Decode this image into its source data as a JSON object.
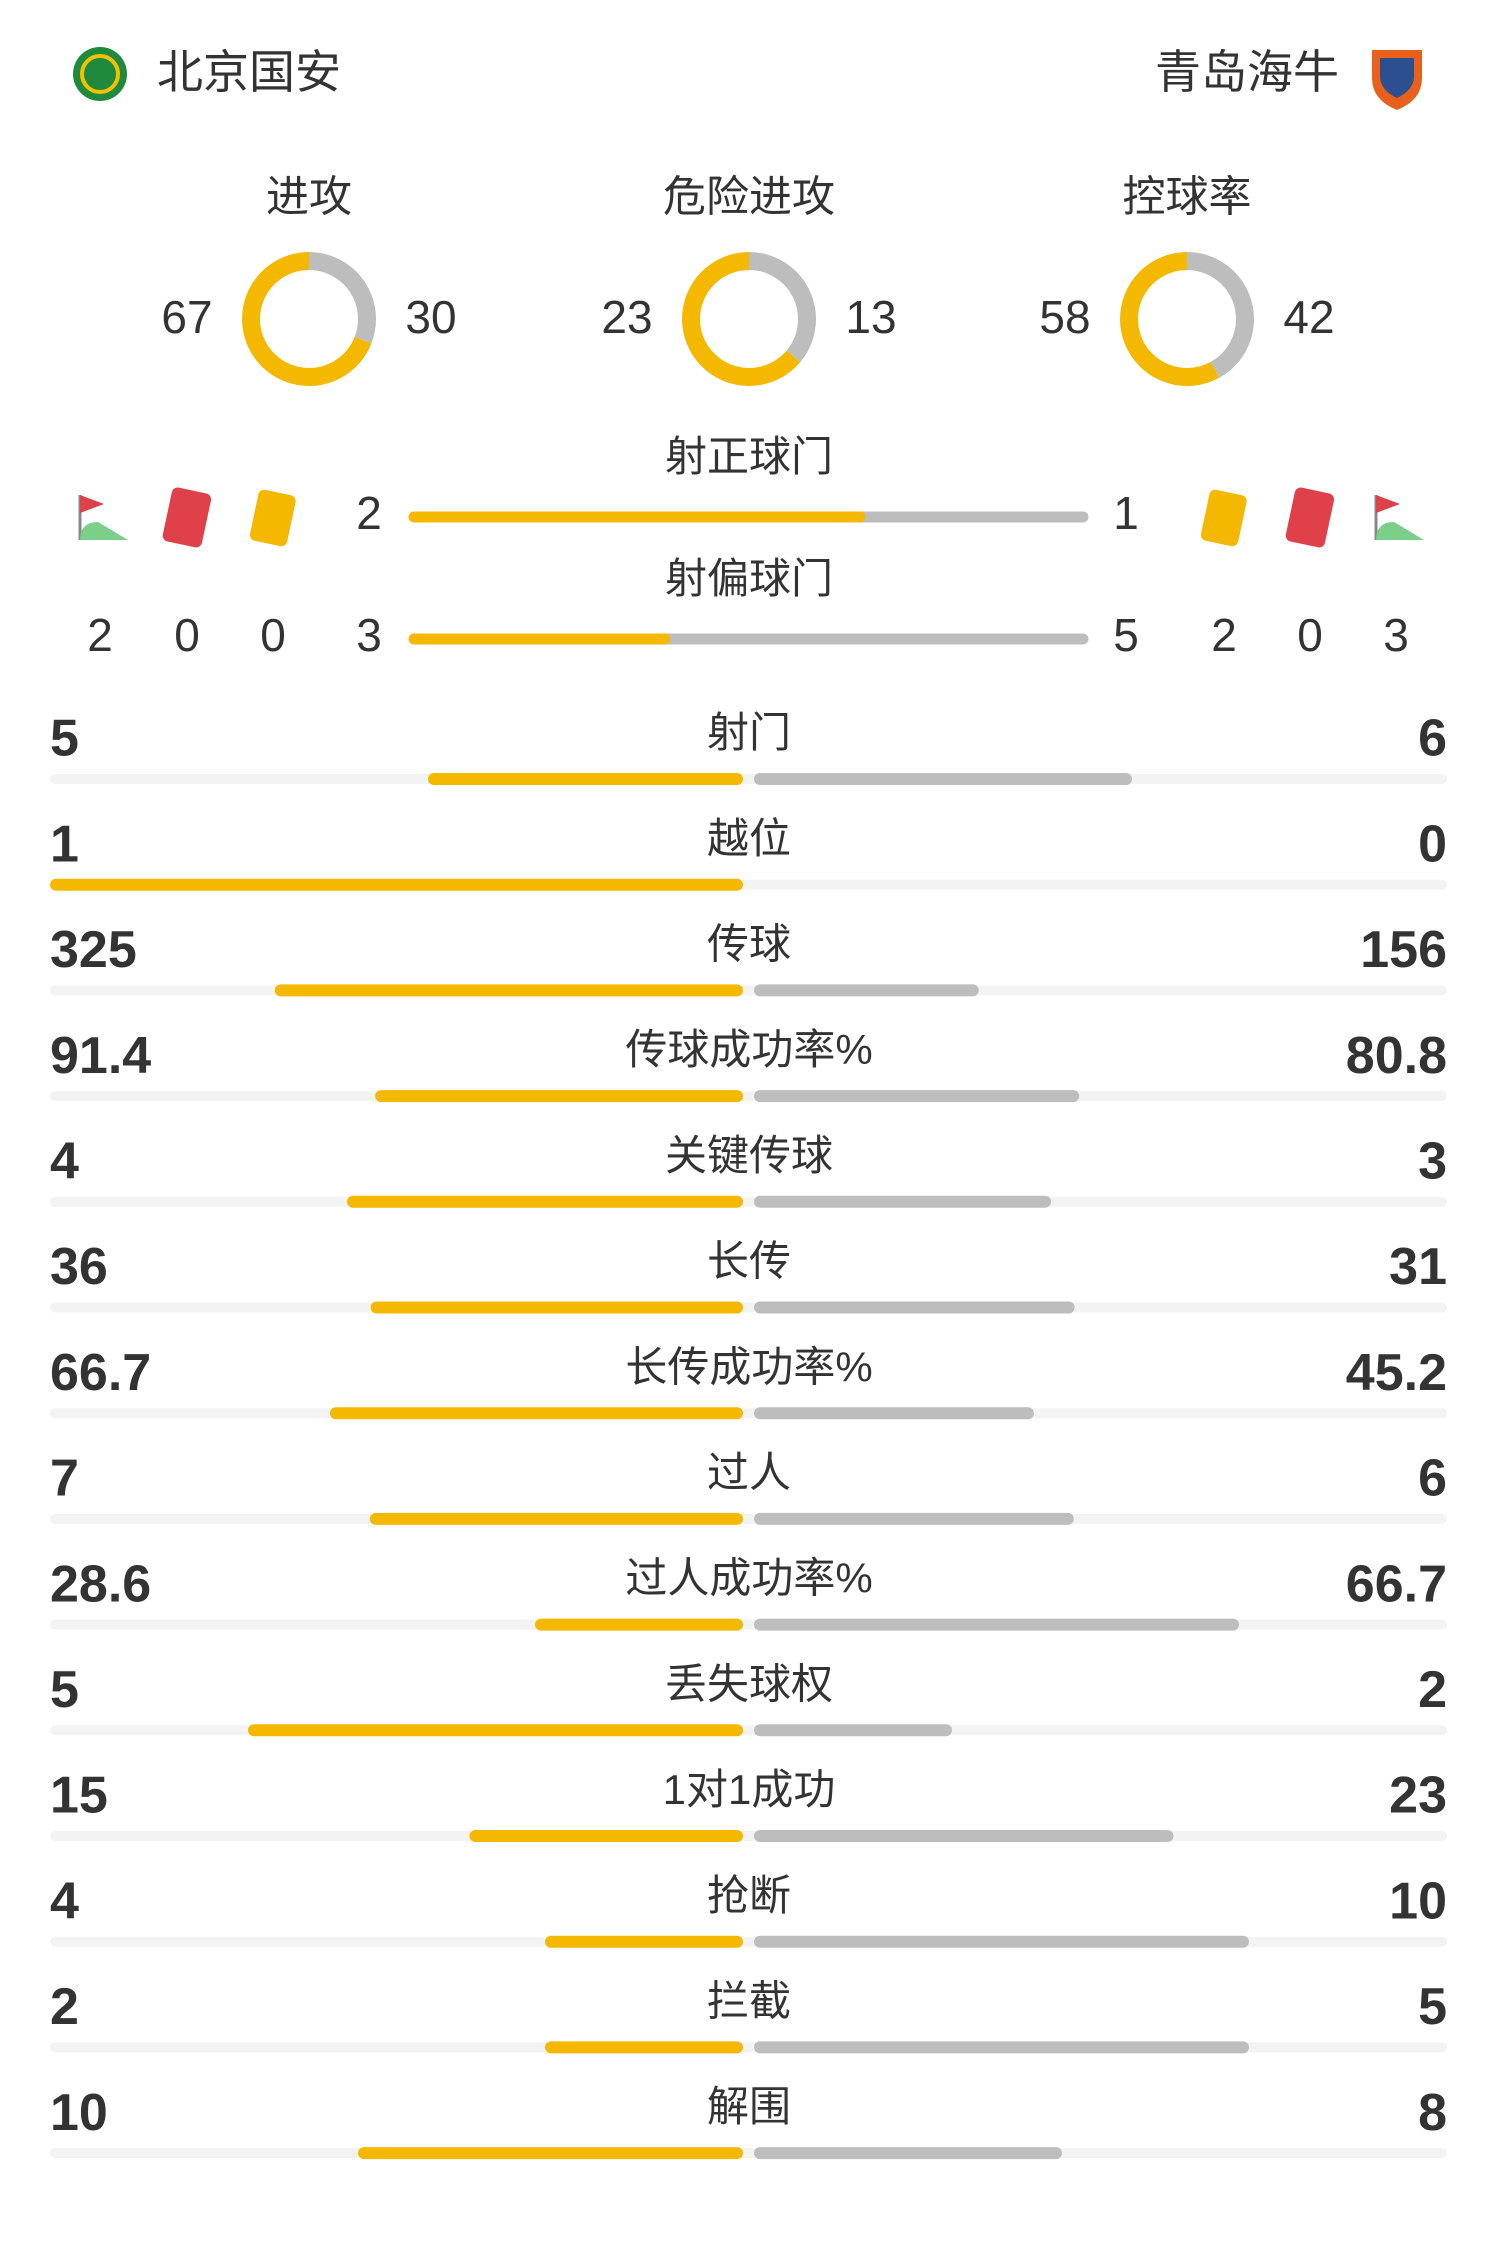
{
  "header": {
    "home": "北京国安",
    "away": "青岛海牛"
  },
  "rings": [
    {
      "label": "进攻",
      "home": 67,
      "away": 30
    },
    {
      "label": "危险进攻",
      "home": 23,
      "away": 13
    },
    {
      "label": "控球率",
      "home": 58,
      "away": 42
    }
  ],
  "cards": {
    "home": {
      "corners": 2,
      "red": 0,
      "yellow": 0
    },
    "away": {
      "yellow": 2,
      "red": 0,
      "corners": 3
    }
  },
  "shot_bars": [
    {
      "label": "射正球门",
      "home": 2,
      "away": 1
    },
    {
      "label": "射偏球门",
      "home": 3,
      "away": 5
    }
  ],
  "stats": [
    {
      "label": "射门",
      "home": 5,
      "away": 6
    },
    {
      "label": "越位",
      "home": 1,
      "away": 0
    },
    {
      "label": "传球",
      "home": 325,
      "away": 156
    },
    {
      "label": "传球成功率%",
      "home": 91.4,
      "away": 80.8
    },
    {
      "label": "关键传球",
      "home": 4,
      "away": 3
    },
    {
      "label": "长传",
      "home": 36,
      "away": 31
    },
    {
      "label": "长传成功率%",
      "home": 66.7,
      "away": 45.2
    },
    {
      "label": "过人",
      "home": 7,
      "away": 6
    },
    {
      "label": "过人成功率%",
      "home": 28.6,
      "away": 66.7
    },
    {
      "label": "丢失球权",
      "home": 5,
      "away": 2
    },
    {
      "label": "1对1成功",
      "home": 15,
      "away": 23
    },
    {
      "label": "抢断",
      "home": 4,
      "away": 10
    },
    {
      "label": "拦截",
      "home": 2,
      "away": 5
    },
    {
      "label": "解围",
      "home": 10,
      "away": 8
    }
  ]
}
